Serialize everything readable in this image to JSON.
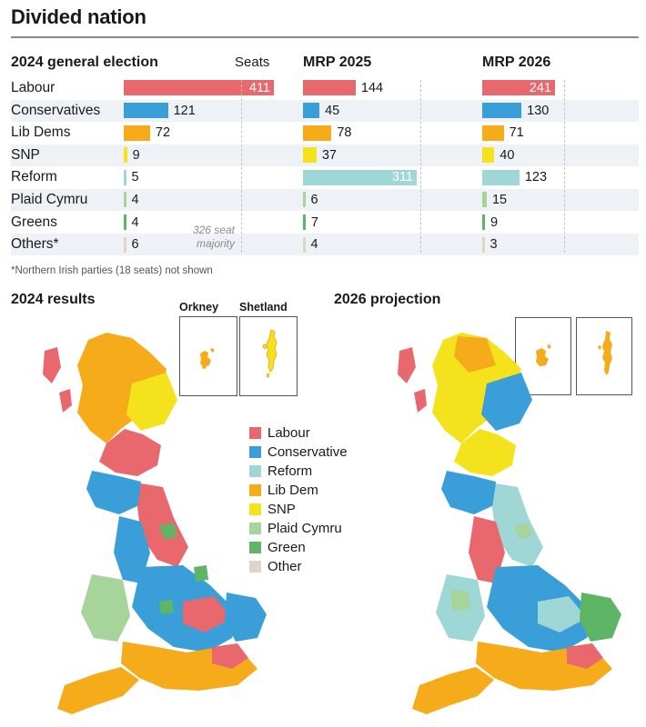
{
  "title": "Divided nation",
  "table": {
    "headers": {
      "ge2024": "2024 general election",
      "seats": "Seats",
      "mrp2025": "MRP 2025",
      "mrp2026": "MRP 2026"
    },
    "majority_note_line1": "326 seat",
    "majority_note_line2": "majority",
    "footnote": "*Northern Irish parties (18 seats) not shown"
  },
  "maps": {
    "title_2024": "2024 results",
    "title_2026": "2026 projection",
    "inset_orkney": "Orkney",
    "inset_shetland": "Shetland"
  },
  "legend": [
    {
      "label": "Labour",
      "color": "#e8686d"
    },
    {
      "label": "Conservative",
      "color": "#3a9fd8"
    },
    {
      "label": "Reform",
      "color": "#9fd6d6"
    },
    {
      "label": "Lib Dem",
      "color": "#f5ab1a"
    },
    {
      "label": "SNP",
      "color": "#f4e31c"
    },
    {
      "label": "Plaid Cymru",
      "color": "#a6d49a"
    },
    {
      "label": "Green",
      "color": "#5eb565"
    },
    {
      "label": "Other",
      "color": "#ddd6c3"
    }
  ],
  "chart_data": {
    "type": "bar",
    "categories": [
      "Labour",
      "Conservatives",
      "Lib Dems",
      "SNP",
      "Reform",
      "Plaid Cymru",
      "Greens",
      "Others*"
    ],
    "colors": [
      "#e8686d",
      "#3a9fd8",
      "#f5ab1a",
      "#f4e31c",
      "#9fd6d6",
      "#a6d49a",
      "#5eb565",
      "#ddd6c3"
    ],
    "series": [
      {
        "name": "2024 general election",
        "values": [
          411,
          121,
          72,
          9,
          5,
          4,
          4,
          6
        ]
      },
      {
        "name": "MRP 2025",
        "values": [
          144,
          45,
          78,
          37,
          311,
          6,
          7,
          4
        ]
      },
      {
        "name": "MRP 2026",
        "values": [
          241,
          130,
          71,
          40,
          123,
          15,
          9,
          3
        ]
      }
    ],
    "ylabel": "Seats",
    "majority_line": 326
  }
}
